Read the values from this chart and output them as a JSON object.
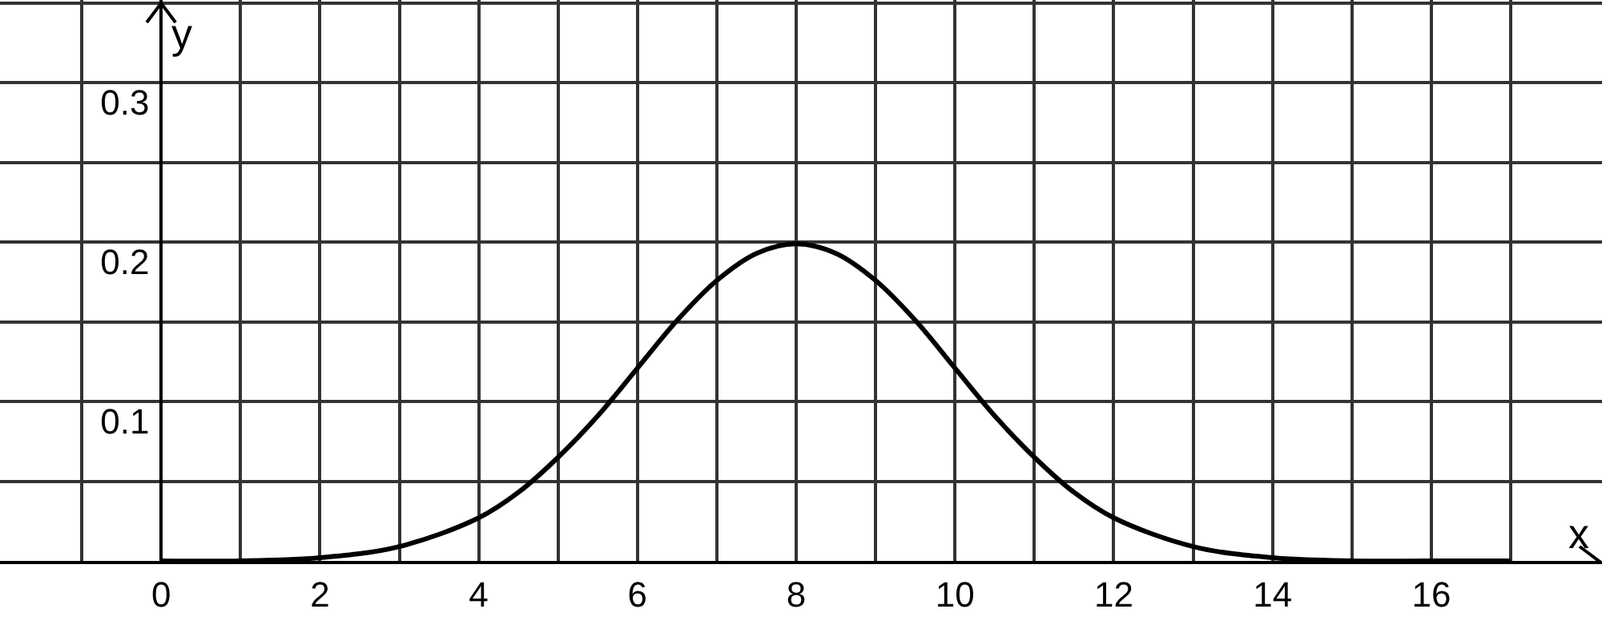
{
  "chart_data": {
    "type": "line",
    "xlabel": "x",
    "ylabel": "y",
    "x": [
      0,
      1,
      2,
      3,
      4,
      4.5,
      5,
      5.5,
      6,
      6.5,
      7,
      7.5,
      8,
      8.5,
      9,
      9.5,
      10,
      10.5,
      11,
      11.5,
      12,
      13,
      14,
      15,
      16,
      17
    ],
    "series": [
      {
        "color": "#000000",
        "values": [
          0,
          0,
          0.002,
          0.009,
          0.027,
          0.043,
          0.065,
          0.091,
          0.121,
          0.151,
          0.176,
          0.193,
          0.199,
          0.193,
          0.176,
          0.151,
          0.121,
          0.091,
          0.065,
          0.043,
          0.027,
          0.009,
          0.002,
          0,
          0,
          0
        ]
      }
    ],
    "xlim": [
      -2.03,
      18.15
    ],
    "ylim": [
      0,
      0.352
    ],
    "xticks": [
      {
        "value": -1,
        "label": null
      },
      0,
      {
        "value": 1,
        "label": null
      },
      2,
      {
        "value": 3,
        "label": null
      },
      4,
      {
        "value": 5,
        "label": null
      },
      6,
      {
        "value": 7,
        "label": null
      },
      8,
      {
        "value": 9,
        "label": null
      },
      10,
      {
        "value": 11,
        "label": null
      },
      12,
      {
        "value": 13,
        "label": null
      },
      14,
      {
        "value": 15,
        "label": null
      },
      16,
      {
        "value": 17,
        "label": null
      }
    ],
    "yticks": [
      {
        "value": 0,
        "label": null
      },
      {
        "value": 0.05,
        "label": null
      },
      0.1,
      {
        "value": 0.15,
        "label": null
      },
      0.2,
      {
        "value": 0.25,
        "label": null
      },
      0.3,
      {
        "value": 0.35,
        "label": null
      }
    ],
    "grid": true,
    "marker": "none",
    "line_style": "solid"
  }
}
